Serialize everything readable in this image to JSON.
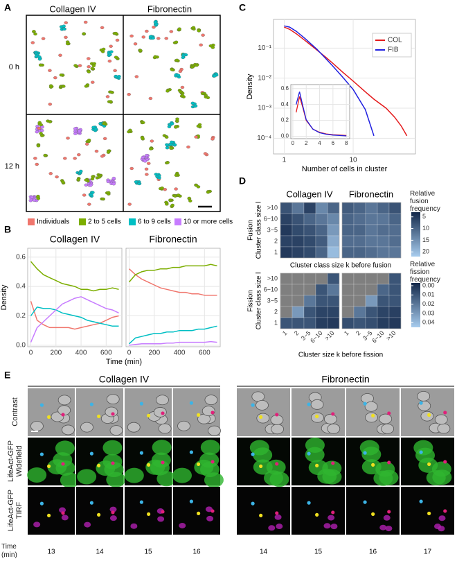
{
  "panel_labels": [
    "A",
    "B",
    "C",
    "D",
    "E"
  ],
  "panel_a": {
    "columns": [
      "Collagen IV",
      "Fibronectin"
    ],
    "rows": [
      "0 h",
      "12 h"
    ]
  },
  "chart_data": [
    {
      "type": "line",
      "facets": [
        "Collagen IV",
        "Fibronectin"
      ],
      "ylabel": "Density",
      "xlabel": "Time (min)",
      "x": [
        0,
        50,
        100,
        150,
        200,
        250,
        300,
        350,
        400,
        450,
        500,
        550,
        600,
        650,
        700
      ],
      "xlim": [
        -25,
        725
      ],
      "xticks": [
        0,
        200,
        400,
        600
      ],
      "ylim": [
        -0.01,
        0.66
      ],
      "yticks": [
        {
          "value": 0,
          "label": "0.0"
        },
        0.2,
        0.4,
        0.6
      ],
      "grid": true,
      "series": [
        {
          "name": "Individuals",
          "color": "#f0766d",
          "values": [
            [
              0.3,
              0.17,
              0.14,
              0.12,
              0.12,
              0.12,
              0.12,
              0.11,
              0.12,
              0.13,
              0.14,
              0.15,
              0.17,
              0.19,
              0.2
            ],
            [
              0.52,
              0.48,
              0.45,
              0.43,
              0.41,
              0.39,
              0.38,
              0.37,
              0.36,
              0.36,
              0.35,
              0.35,
              0.34,
              0.34,
              0.34
            ]
          ]
        },
        {
          "name": "2 to 5 cells",
          "color": "#7cae00",
          "values": [
            [
              0.57,
              0.52,
              0.48,
              0.46,
              0.44,
              0.42,
              0.41,
              0.4,
              0.38,
              0.38,
              0.37,
              0.38,
              0.38,
              0.39,
              0.38
            ],
            [
              0.43,
              0.48,
              0.5,
              0.51,
              0.51,
              0.52,
              0.52,
              0.53,
              0.53,
              0.54,
              0.54,
              0.54,
              0.54,
              0.55,
              0.54
            ]
          ]
        },
        {
          "name": "6 to 9 cells",
          "color": "#00bfc4",
          "values": [
            [
              0.2,
              0.26,
              0.25,
              0.25,
              0.24,
              0.22,
              0.21,
              0.2,
              0.19,
              0.17,
              0.16,
              0.15,
              0.14,
              0.13,
              0.13
            ],
            [
              0.01,
              0.05,
              0.06,
              0.07,
              0.08,
              0.08,
              0.09,
              0.09,
              0.1,
              0.1,
              0.1,
              0.11,
              0.11,
              0.12,
              0.13
            ]
          ]
        },
        {
          "name": "10 or more cells",
          "color": "#c77cff",
          "values": [
            [
              0.02,
              0.12,
              0.16,
              0.2,
              0.24,
              0.28,
              0.3,
              0.32,
              0.33,
              0.31,
              0.29,
              0.27,
              0.25,
              0.24,
              0.22
            ],
            [
              0.0,
              0.005,
              0.01,
              0.01,
              0.01,
              0.01,
              0.015,
              0.015,
              0.02,
              0.02,
              0.02,
              0.02,
              0.02,
              0.025,
              0.02
            ]
          ]
        }
      ]
    },
    {
      "type": "line",
      "log_x": true,
      "log_y": true,
      "xlabel": "Number of cells in cluster",
      "ylabel": "Density",
      "x": [
        1,
        1.2,
        1.5,
        2,
        3,
        4,
        5,
        7,
        10,
        15,
        20,
        30,
        40,
        50,
        60
      ],
      "xlim": [
        0.7,
        80
      ],
      "xticks": [
        1,
        10
      ],
      "ylim": [
        3e-05,
        0.9
      ],
      "yticks": [
        {
          "value": 0.0001,
          "label": "10⁻⁴"
        },
        {
          "value": 0.001,
          "label": "10⁻³"
        },
        {
          "value": 0.01,
          "label": "10⁻²"
        },
        {
          "value": 0.1,
          "label": "10⁻¹"
        }
      ],
      "grid": true,
      "legend": "top-right",
      "series": [
        {
          "name": "COL",
          "color": "#e41a1c",
          "values": [
            0.5,
            0.42,
            0.3,
            0.18,
            0.085,
            0.05,
            0.032,
            0.016,
            0.008,
            0.0035,
            0.002,
            0.001,
            0.0005,
            0.00025,
            0.00012
          ]
        },
        {
          "name": "FIB",
          "color": "#2020e0",
          "values": [
            0.55,
            0.5,
            0.36,
            0.21,
            0.09,
            0.045,
            0.026,
            0.011,
            0.0042,
            0.0009,
            0.00012,
            null,
            null,
            null,
            null
          ]
        }
      ]
    },
    {
      "type": "line",
      "inset": true,
      "x": [
        0.5,
        1,
        1.5,
        2,
        3,
        4,
        5,
        6,
        7,
        8
      ],
      "xlim": [
        -0.3,
        8.5
      ],
      "xticks": [
        0,
        2,
        4,
        6,
        8
      ],
      "ylim": [
        -0.03,
        0.65
      ],
      "yticks": [
        {
          "value": 0,
          "label": "0.0"
        },
        0.2,
        0.4,
        0.6
      ],
      "grid": true,
      "series": [
        {
          "color": "#e41a1c",
          "values": [
            0.3,
            0.5,
            0.36,
            0.2,
            0.09,
            0.05,
            0.03,
            0.02,
            0.015,
            0.01
          ]
        },
        {
          "color": "#2020e0",
          "values": [
            0.4,
            0.56,
            0.38,
            0.21,
            0.09,
            0.045,
            0.026,
            0.015,
            0.01,
            0.005
          ]
        }
      ]
    },
    {
      "type": "heatmap",
      "facets": [
        "Collagen IV",
        "Fibronectin"
      ],
      "row_title": "Fusion",
      "ylabel": "Cluster class size l",
      "xlabel": "Cluster class size k before fusion",
      "rows": [
        ">10",
        "6−10",
        "3−5",
        "2",
        "1"
      ],
      "values": [
        [
          [
            8,
            12,
            6,
            14,
            10
          ],
          [
            6,
            8,
            10,
            12,
            14
          ],
          [
            5,
            7,
            8,
            10,
            16
          ],
          [
            6,
            6,
            7,
            9,
            18
          ],
          [
            5,
            6,
            7,
            10,
            20
          ]
        ],
        [
          [
            9,
            10,
            12,
            10,
            8
          ],
          [
            10,
            11,
            12,
            12,
            10
          ],
          [
            10,
            10,
            12,
            11,
            11
          ],
          [
            11,
            11,
            12,
            12,
            11
          ],
          [
            10,
            10,
            11,
            12,
            12
          ]
        ]
      ],
      "colors": [
        "#13284a",
        "#a8cdef"
      ],
      "colorbar": {
        "title": "Relative fusion frequency",
        "lim": [
          3,
          22
        ],
        "ticks": [
          5,
          10,
          15,
          20
        ]
      }
    },
    {
      "type": "heatmap",
      "row_title": "Fission",
      "ylabel": "Cluster class size l",
      "xlabel": "Cluster size k before fission",
      "rows": [
        ">10",
        "6−10",
        "3−5",
        "2",
        "1"
      ],
      "columns": [
        "1",
        "2",
        "3−5",
        "6−10",
        ">10"
      ],
      "values": [
        [
          [
            null,
            null,
            null,
            null,
            0.01
          ],
          [
            null,
            null,
            null,
            0.01,
            0.02
          ],
          [
            null,
            null,
            0.02,
            0.01,
            0.01
          ],
          [
            null,
            0.03,
            0.01,
            0.005,
            0.005
          ],
          [
            0.01,
            0.01,
            0.01,
            0.003,
            0.002
          ]
        ],
        [
          [
            null,
            null,
            null,
            null,
            0.01
          ],
          [
            null,
            null,
            null,
            0.015,
            0.01
          ],
          [
            null,
            null,
            0.03,
            0.01,
            0.01
          ],
          [
            null,
            0.02,
            0.01,
            0.005,
            0.004
          ],
          [
            0.008,
            0.01,
            0.008,
            0.003,
            0.002
          ]
        ]
      ],
      "colors": [
        "#13284a",
        "#a8cdef"
      ],
      "missing_color": "#7f7f7f",
      "colorbar": {
        "title": "Relative fission frequency",
        "lim": [
          -0.003,
          0.045
        ],
        "ticks": [
          {
            "value": 0,
            "label": "0.00"
          },
          {
            "value": 0.01,
            "label": "0.01"
          },
          {
            "value": 0.02,
            "label": "0.02"
          },
          {
            "value": 0.03,
            "label": "0.03"
          },
          {
            "value": 0.04,
            "label": "0.04"
          }
        ]
      }
    }
  ],
  "panel_e": {
    "conditions": [
      {
        "title": "Collagen IV",
        "times": [
          13,
          14,
          15,
          16
        ]
      },
      {
        "title": "Fibronectin",
        "times": [
          14,
          15,
          16,
          17
        ]
      }
    ],
    "rows": [
      "Contrast",
      "LifeAct-GFP Widefield",
      "LifeAct-GFP TIRF"
    ],
    "time_label": "Time (min)"
  }
}
